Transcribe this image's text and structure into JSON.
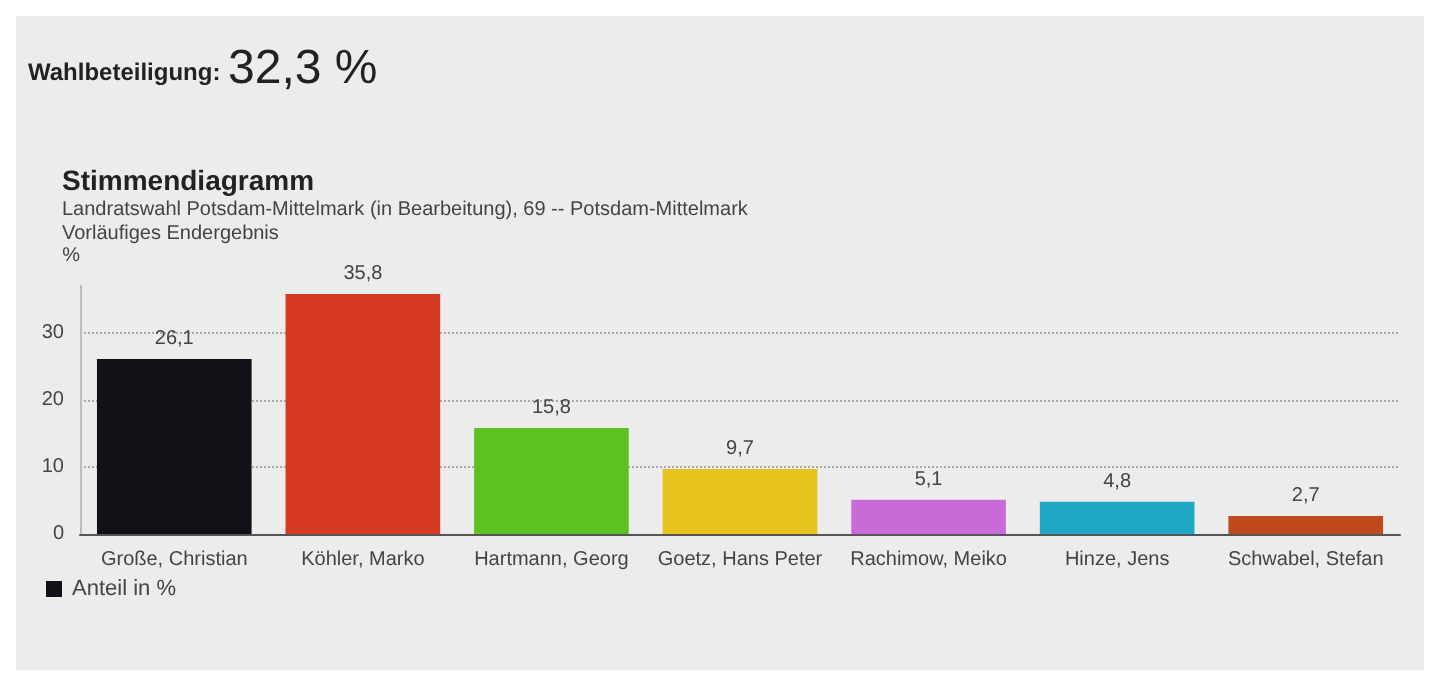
{
  "chart_data": {
    "type": "bar",
    "title": "Stimmendiagramm",
    "subtitle": "Landratswahl Potsdam-Mittelmark (in Bearbeitung), 69 -- Potsdam-Mittelmark\nVorläufiges Endergebnis",
    "annotations": [
      "Wahlbeteiligung:",
      "32,3 %"
    ],
    "ylabel": "%",
    "categories": [
      "Große, Christian",
      "Köhler, Marko",
      "Hartmann, Georg",
      "Goetz, Hans Peter",
      "Rachimow, Meiko",
      "Hinze, Jens",
      "Schwabel, Stefan"
    ],
    "series": [
      {
        "name": "Anteil in %",
        "values": [
          26.1,
          35.8,
          15.8,
          9.7,
          5.1,
          4.8,
          2.7
        ]
      }
    ],
    "colors": [
      "#111118",
      "#d63a22",
      "#5cc221",
      "#e6c21c",
      "#c86ad8",
      "#1fa8c4",
      "#c04a1e"
    ],
    "value_labels": [
      "26,1",
      "35,8",
      "15,8",
      "9,7",
      "5,1",
      "4,8",
      "2,7"
    ],
    "ylim": [
      0,
      37
    ],
    "yticks": [
      0,
      10,
      20,
      30
    ],
    "grid": "y",
    "legend": "bottom left"
  }
}
